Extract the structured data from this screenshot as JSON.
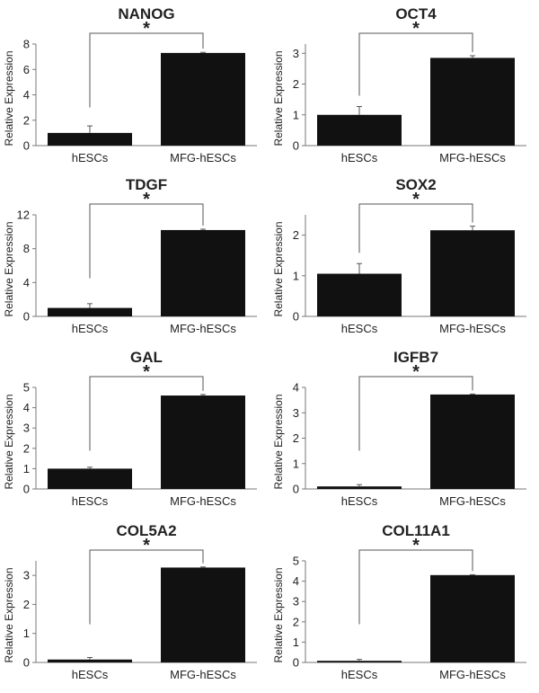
{
  "chart_data": [
    {
      "type": "bar",
      "title": "NANOG",
      "ylabel": "Relative Expression",
      "categories": [
        "hESCs",
        "MFG-hESCs"
      ],
      "values": [
        1.0,
        7.3
      ],
      "errors": [
        0.55,
        0.05
      ],
      "ylim": [
        0,
        8
      ],
      "yticks": [
        0,
        2,
        4,
        6,
        8
      ],
      "significance": "*",
      "bar_color": "#111111",
      "grid": false
    },
    {
      "type": "bar",
      "title": "OCT4",
      "ylabel": "Relative Expression",
      "categories": [
        "hESCs",
        "MFG-hESCs"
      ],
      "values": [
        1.0,
        2.85
      ],
      "errors": [
        0.27,
        0.07
      ],
      "ylim": [
        0,
        3.3
      ],
      "yticks": [
        0,
        1,
        2,
        3
      ],
      "significance": "*",
      "bar_color": "#111111",
      "grid": false
    },
    {
      "type": "bar",
      "title": "TDGF",
      "ylabel": "Relative Expression",
      "categories": [
        "hESCs",
        "MFG-hESCs"
      ],
      "values": [
        1.0,
        10.2
      ],
      "errors": [
        0.5,
        0.1
      ],
      "ylim": [
        0,
        12
      ],
      "yticks": [
        0,
        4,
        8,
        12
      ],
      "significance": "*",
      "bar_color": "#111111",
      "grid": false
    },
    {
      "type": "bar",
      "title": "SOX2",
      "ylabel": "Relative Expression",
      "categories": [
        "hESCs",
        "MFG-hESCs"
      ],
      "values": [
        1.05,
        2.12
      ],
      "errors": [
        0.25,
        0.1
      ],
      "ylim": [
        0,
        2.5
      ],
      "yticks": [
        0,
        1,
        2
      ],
      "significance": "*",
      "bar_color": "#111111",
      "grid": false
    },
    {
      "type": "bar",
      "title": "GAL",
      "ylabel": "Relative Expression",
      "categories": [
        "hESCs",
        "MFG-hESCs"
      ],
      "values": [
        1.0,
        4.6
      ],
      "errors": [
        0.07,
        0.05
      ],
      "ylim": [
        0,
        5
      ],
      "yticks": [
        0,
        1,
        2,
        3,
        4,
        5
      ],
      "significance": "*",
      "bar_color": "#111111",
      "grid": false
    },
    {
      "type": "bar",
      "title": "IGFB7",
      "ylabel": "Relative Expression",
      "categories": [
        "hESCs",
        "MFG-hESCs"
      ],
      "values": [
        0.1,
        3.72
      ],
      "errors": [
        0.07,
        0.02
      ],
      "ylim": [
        0,
        4
      ],
      "yticks": [
        0,
        1,
        2,
        3,
        4
      ],
      "significance": "*",
      "bar_color": "#111111",
      "grid": false
    },
    {
      "type": "bar",
      "title": "COL5A2",
      "ylabel": "Relative Expression",
      "categories": [
        "hESCs",
        "MFG-hESCs"
      ],
      "values": [
        0.1,
        3.27
      ],
      "errors": [
        0.07,
        0.02
      ],
      "ylim": [
        0,
        3.5
      ],
      "yticks": [
        0,
        1,
        2,
        3
      ],
      "significance": "*",
      "bar_color": "#111111",
      "grid": false
    },
    {
      "type": "bar",
      "title": "COL11A1",
      "ylabel": "Relative Expression",
      "categories": [
        "hESCs",
        "MFG-hESCs"
      ],
      "values": [
        0.08,
        4.3
      ],
      "errors": [
        0.07,
        0.02
      ],
      "ylim": [
        0,
        5
      ],
      "yticks": [
        0,
        1,
        2,
        3,
        4,
        5
      ],
      "significance": "*",
      "bar_color": "#111111",
      "grid": false
    }
  ]
}
